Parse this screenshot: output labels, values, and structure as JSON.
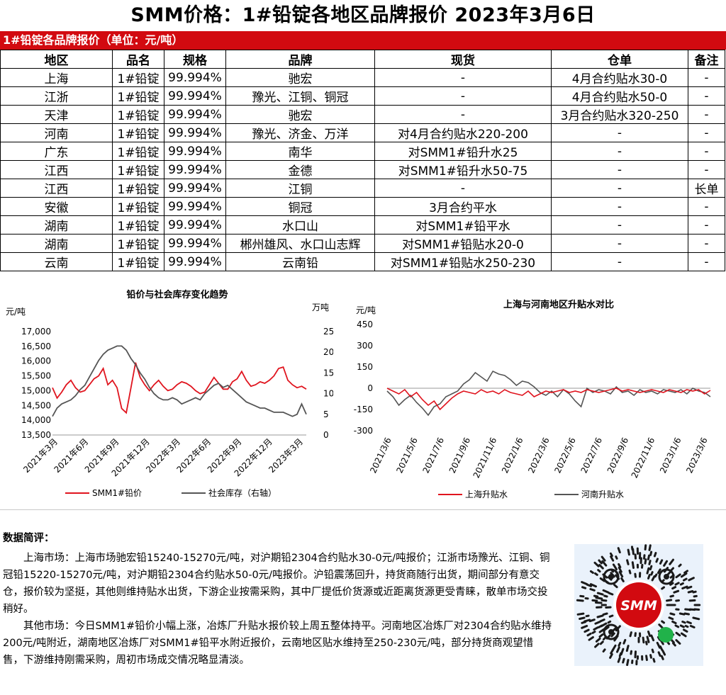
{
  "header": {
    "title": "SMM价格：1#铅锭各地区品牌报价 2023年3月6日"
  },
  "table": {
    "caption": "1#铅锭各品牌报价（单位：元/吨）",
    "columns": [
      "地区",
      "品名",
      "规格",
      "品牌",
      "现货",
      "仓单",
      "备注"
    ],
    "rows": [
      [
        "上海",
        "1#铅锭",
        "99.994%",
        "驰宏",
        "-",
        "4月合约贴水30-0",
        "-"
      ],
      [
        "江浙",
        "1#铅锭",
        "99.994%",
        "豫光、江铜、铜冠",
        "-",
        "4月合约贴水50-0",
        "-"
      ],
      [
        "天津",
        "1#铅锭",
        "99.994%",
        "驰宏",
        "-",
        "3月合约贴水320-250",
        "-"
      ],
      [
        "河南",
        "1#铅锭",
        "99.994%",
        "豫光、济金、万洋",
        "对4月合约贴水220-200",
        "-",
        "-"
      ],
      [
        "广东",
        "1#铅锭",
        "99.994%",
        "南华",
        "对SMM1#铅升水25",
        "-",
        "-"
      ],
      [
        "江西",
        "1#铅锭",
        "99.994%",
        "金德",
        "对SMM1#铅升水50-75",
        "-",
        "-"
      ],
      [
        "江西",
        "1#铅锭",
        "99.994%",
        "江铜",
        "-",
        "-",
        "长单"
      ],
      [
        "安徽",
        "1#铅锭",
        "99.994%",
        "铜冠",
        "3月合约平水",
        "-",
        "-"
      ],
      [
        "湖南",
        "1#铅锭",
        "99.994%",
        "水口山",
        "对SMM1#铅平水",
        "-",
        "-"
      ],
      [
        "湖南",
        "1#铅锭",
        "99.994%",
        "郴州雄风、水口山志辉",
        "对SMM1#铅贴水20-0",
        "-",
        "-"
      ],
      [
        "云南",
        "1#铅锭",
        "99.994%",
        "云南铅",
        "对SMM1#铅贴水250-230",
        "-",
        "-"
      ]
    ]
  },
  "colors": {
    "brand_red": "#d20a10",
    "series_red": "#e0141e",
    "series_gray": "#555555"
  },
  "chart_data": [
    {
      "type": "line",
      "title": "铅价与社会库存变化趋势",
      "ylabel": "元/吨",
      "y2label": "万吨",
      "ylim": [
        13500,
        17000
      ],
      "yticks": [
        "13,500",
        "14,000",
        "14,500",
        "15,000",
        "15,500",
        "16,000",
        "16,500",
        "17,000"
      ],
      "y2lim": [
        0,
        25
      ],
      "y2ticks": [
        "0",
        "5",
        "10",
        "15",
        "20",
        "25"
      ],
      "xticks": [
        "2021年3月",
        "2021年6月",
        "2021年9月",
        "2021年12月",
        "2022年3月",
        "2022年6月",
        "2022年9月",
        "2022年12月",
        "2023年3月"
      ],
      "series": [
        {
          "name": "SMM1#铅价",
          "axis": "left",
          "color": "#e0141e",
          "values": [
            15100,
            14750,
            14950,
            15200,
            15350,
            15100,
            14950,
            15000,
            15200,
            15400,
            15500,
            15750,
            15200,
            15350,
            15100,
            14400,
            14250,
            15100,
            15950,
            15450,
            15200,
            15000,
            15200,
            15350,
            15150,
            15000,
            15050,
            15200,
            15300,
            15250,
            15150,
            15000,
            14900,
            14950,
            15200,
            15450,
            15250,
            15050,
            15050,
            15300,
            15400,
            15650,
            15350,
            15150,
            15200,
            15300,
            15250,
            15350,
            15500,
            15750,
            15800,
            15350,
            15200,
            15100,
            15150,
            15050
          ]
        },
        {
          "name": "社会库存（右轴）",
          "axis": "right",
          "color": "#555555",
          "values": [
            4.5,
            6.5,
            7.5,
            8,
            8.5,
            9.5,
            11,
            12,
            14,
            16,
            18,
            19.5,
            20.5,
            21,
            21.5,
            21.5,
            20.5,
            18.5,
            17,
            15,
            13.5,
            11.5,
            10,
            9,
            8.5,
            8.5,
            9,
            8.5,
            7.5,
            8,
            8.5,
            9,
            8.5,
            10,
            11,
            12,
            12.5,
            11.5,
            12,
            11,
            10,
            9,
            8,
            7.5,
            7,
            6.5,
            6.5,
            6,
            5.5,
            5.5,
            5.5,
            5,
            4.5,
            5,
            7.5,
            5
          ]
        }
      ]
    },
    {
      "type": "line",
      "title": "上海与河南地区升贴水对比",
      "ylabel": "元/吨",
      "ylim": [
        -300,
        450
      ],
      "yticks": [
        "-300",
        "-150",
        "0",
        "150",
        "300",
        "450"
      ],
      "xticks": [
        "2021/3/6",
        "2021/5/6",
        "2021/7/6",
        "2021/9/6",
        "2021/11/6",
        "2022/1/6",
        "2022/3/6",
        "2022/5/6",
        "2022/7/6",
        "2022/9/6",
        "2022/11/6",
        "2023/1/6",
        "2023/3/6"
      ],
      "series": [
        {
          "name": "上海升贴水",
          "color": "#e0141e",
          "values": [
            0,
            -20,
            -40,
            -10,
            -60,
            -30,
            -80,
            -120,
            -90,
            -150,
            -110,
            -70,
            -40,
            -20,
            -30,
            -40,
            -10,
            -30,
            -20,
            -40,
            -10,
            -30,
            -40,
            -50,
            -20,
            -60,
            -40,
            -20,
            -30,
            -20,
            -10,
            -30,
            -20,
            -30,
            -10,
            -20,
            -30,
            -20,
            -10,
            0,
            -20,
            -10,
            -20,
            -30,
            -20,
            -10,
            -20,
            -30,
            -10,
            -20,
            -30,
            -10,
            -20,
            -10,
            -40,
            -15
          ]
        },
        {
          "name": "河南升贴水",
          "color": "#555555",
          "values": [
            -20,
            -60,
            -120,
            -80,
            -50,
            -100,
            -140,
            -190,
            -130,
            -110,
            -60,
            -40,
            -20,
            30,
            60,
            110,
            80,
            50,
            120,
            100,
            90,
            60,
            20,
            50,
            40,
            10,
            -30,
            -50,
            -20,
            -60,
            -10,
            -40,
            -90,
            -130,
            0,
            -30,
            -10,
            -20,
            -40,
            10,
            -30,
            -20,
            -50,
            -10,
            -30,
            -20,
            -40,
            -10,
            -20,
            -30,
            -10,
            -40,
            0,
            -20,
            -30,
            -60
          ]
        }
      ]
    }
  ],
  "comment": {
    "label": "数据简评：",
    "p1": "上海市场：上海市场驰宏铅15240-15270元/吨，对沪期铅2304合约贴水30-0元/吨报价；江浙市场豫光、江铜、铜冠铅15220-15270元/吨，对沪期铅2304合约贴水50-0元/吨报价。沪铅震荡回升，持货商随行出货，期间部分有意交仓，报价较为坚挺，其他则维持贴水出货，下游企业按需采购，其中厂提低价货源或近距离货源更受青睐，散单市场交投稍好。",
    "p2": "其他市场：今日SMM1#铅价小幅上涨，冶炼厂升贴水报价较上周五整体持平。河南地区冶炼厂对2304合约贴水维持200元/吨附近，湖南地区冶炼厂对SMM1#铅平水附近报价，云南地区贴水维持至250-230元/吨，部分持货商观望惜售，下游维持刚需采购，周初市场成交情况略显清淡。"
  },
  "qr": {
    "logo_text": "SMM"
  }
}
